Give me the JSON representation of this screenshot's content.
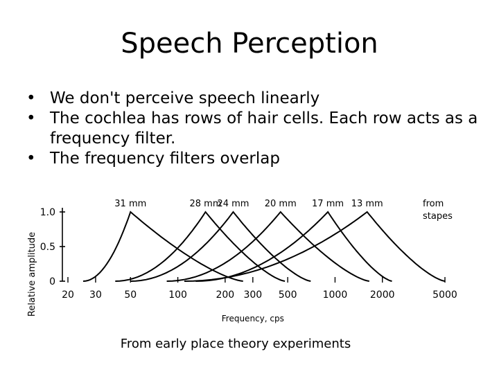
{
  "slide": {
    "title": "Speech Perception",
    "bullets": [
      "We don't perceive speech linearly",
      "The cochlea has rows of hair cells. Each row acts as a frequency filter.",
      "The frequency filters overlap"
    ],
    "bullet_glyph": "•",
    "caption": "From early place theory experiments"
  },
  "chart_data": {
    "type": "line",
    "ylabel": "Relative   amplitude",
    "xlabel": "Frequency, cps",
    "x_scale": "log",
    "x_ticks": [
      20,
      30,
      50,
      100,
      200,
      300,
      500,
      1000,
      2000,
      5000
    ],
    "x_tick_labels": [
      "20",
      "30",
      "50",
      "100",
      "200",
      "300",
      "500",
      "1000",
      "2000",
      "5000"
    ],
    "y_ticks": [
      0,
      0.5,
      1.0
    ],
    "y_tick_labels": [
      "0",
      "0.5",
      "1.0"
    ],
    "ylim": [
      0,
      1.0
    ],
    "peak_labels": [
      "31 mm",
      "28 mm",
      "24 mm",
      "20 mm",
      "17 mm",
      "13 mm"
    ],
    "annotation": "from stapes",
    "series": [
      {
        "peak_label": "31 mm",
        "peak_x": 50,
        "start_x": 25,
        "end_x": 260
      },
      {
        "peak_label": "28 mm",
        "peak_x": 150,
        "start_x": 40,
        "end_x": 480
      },
      {
        "peak_label": "24 mm",
        "peak_x": 225,
        "start_x": 50,
        "end_x": 700
      },
      {
        "peak_label": "20 mm",
        "peak_x": 450,
        "start_x": 85,
        "end_x": 1650
      },
      {
        "peak_label": "17 mm",
        "peak_x": 900,
        "start_x": 130,
        "end_x": 2300
      },
      {
        "peak_label": "13 mm",
        "peak_x": 1600,
        "start_x": 110,
        "end_x": 5000
      }
    ],
    "grid": false,
    "legend": "none"
  }
}
